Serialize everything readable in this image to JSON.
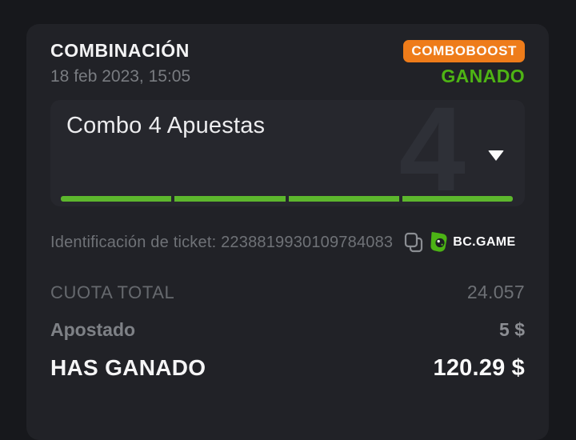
{
  "colors": {
    "outer_bg": "#17181c",
    "panel_bg": "#212227",
    "card_bg": "#26272d",
    "accent_orange": "#ee7c1a",
    "status_green": "#4eb414",
    "bar_green": "#5db72d",
    "text_white": "#f3f3f4",
    "text_gray": "#797c81",
    "text_dim": "#66696e"
  },
  "header": {
    "title": "COMBINACIÓN",
    "datetime": "18 feb 2023, 15:05",
    "boost_badge": "COMBOBOOST",
    "status": "GANADO"
  },
  "combo_card": {
    "title": "Combo 4 Apuestas",
    "selections_count": "4",
    "legs": 4
  },
  "ticket": {
    "label": "Identificación de ticket:",
    "id": "2238819930109784083",
    "brand": "BC.GAME"
  },
  "icons": {
    "copy": "copy-icon",
    "dropdown": "chevron-down-icon",
    "brand_logo": "bcgame-logo-icon"
  },
  "summary": {
    "rows": [
      {
        "label": "CUOTA TOTAL",
        "value": "24.057"
      },
      {
        "label": "Apostado",
        "value": "5 $"
      },
      {
        "label": "HAS GANADO",
        "value": "120.29 $"
      }
    ]
  }
}
